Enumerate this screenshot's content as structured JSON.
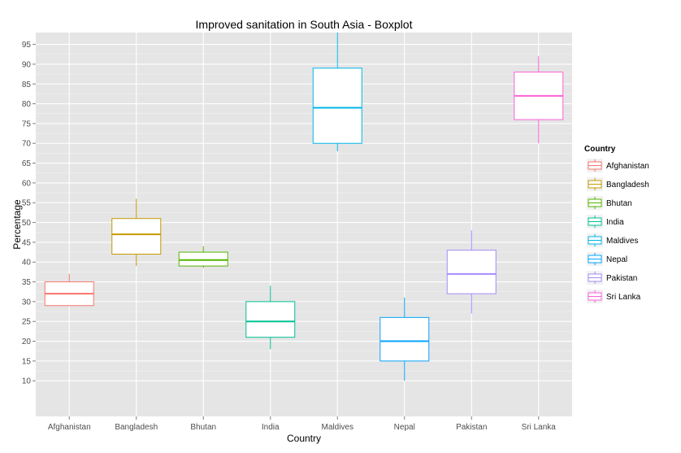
{
  "chart_data": {
    "type": "boxplot",
    "title": "Improved sanitation in South Asia - Boxplot",
    "xlabel": "Country",
    "ylabel": "Percentage",
    "ylim": [
      1,
      98
    ],
    "yticks": [
      10,
      15,
      20,
      25,
      30,
      35,
      40,
      45,
      50,
      55,
      60,
      65,
      70,
      75,
      80,
      85,
      90,
      95
    ],
    "categories": [
      "Afghanistan",
      "Bangladesh",
      "Bhutan",
      "India",
      "Maldives",
      "Nepal",
      "Pakistan",
      "Sri Lanka"
    ],
    "series": [
      {
        "name": "Afghanistan",
        "color": "#F8766D",
        "min": 29,
        "q1": 29,
        "median": 32,
        "q3": 35,
        "max": 37
      },
      {
        "name": "Bangladesh",
        "color": "#C49A00",
        "min": 39,
        "q1": 42,
        "median": 47,
        "q3": 51,
        "max": 56
      },
      {
        "name": "Bhutan",
        "color": "#53B400",
        "min": 38.5,
        "q1": 39,
        "median": 40.5,
        "q3": 42.5,
        "max": 44
      },
      {
        "name": "India",
        "color": "#00C094",
        "min": 18,
        "q1": 21,
        "median": 25,
        "q3": 30,
        "max": 34
      },
      {
        "name": "Maldives",
        "color": "#00B6EB",
        "min": 68,
        "q1": 70,
        "median": 79,
        "q3": 89,
        "max": 98
      },
      {
        "name": "Nepal",
        "color": "#06A4FF",
        "min": 10,
        "q1": 15,
        "median": 20,
        "q3": 26,
        "max": 31
      },
      {
        "name": "Pakistan",
        "color": "#A58AFF",
        "min": 27,
        "q1": 32,
        "median": 37,
        "q3": 43,
        "max": 48
      },
      {
        "name": "Sri Lanka",
        "color": "#FB61D7",
        "min": 70,
        "q1": 76,
        "median": 82,
        "q3": 88,
        "max": 92
      }
    ],
    "grid": true,
    "panel_background": "#E5E5E5",
    "grid_color": "#FFFFFF",
    "legend": {
      "title": "Country",
      "position": "right"
    }
  }
}
